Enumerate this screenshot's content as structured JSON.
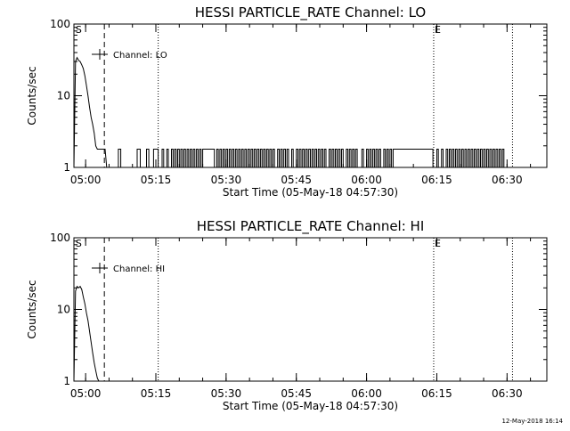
{
  "footer_timestamp": "12-May-2018 16:14",
  "chart_data": [
    {
      "type": "line",
      "title": "HESSI PARTICLE_RATE Channel: LO",
      "xlabel": "Start Time (05-May-18 04:57:30)",
      "ylabel": "Counts/sec",
      "yscale": "log",
      "ylim": [
        1,
        100
      ],
      "y_ticks": [
        "1",
        "10",
        "100"
      ],
      "xlim": [
        "04:57:30",
        "06:38:30"
      ],
      "x_ticks": [
        "05:00",
        "05:15",
        "05:30",
        "05:45",
        "06:00",
        "06:15",
        "06:30"
      ],
      "legend": {
        "label": "Channel: LO",
        "position": "top-left"
      },
      "markers": [
        {
          "label": "S",
          "x": "04:57:40",
          "style": "none"
        },
        {
          "label": "",
          "x": "05:04:00",
          "style": "dashed"
        },
        {
          "label": "",
          "x": "05:15:30",
          "style": "dotted"
        },
        {
          "label": "E",
          "x": "06:14:20",
          "style": "dotted"
        },
        {
          "label": "",
          "x": "06:31:10",
          "style": "dotted"
        }
      ],
      "series": [
        {
          "name": "Channel: LO",
          "x": [
            "04:57:30",
            "04:57:50",
            "04:58:10",
            "04:58:30",
            "04:58:50",
            "04:59:10",
            "04:59:30",
            "04:59:50",
            "05:00:10",
            "05:00:30",
            "05:00:50",
            "05:01:10",
            "05:01:30",
            "05:01:50",
            "05:02:10",
            "05:02:30",
            "05:02:50",
            "05:03:10",
            "05:03:30",
            "05:03:50",
            "05:04:10",
            "05:04:30",
            "05:05:00"
          ],
          "y": [
            1.0,
            30,
            34,
            31,
            30,
            27,
            24,
            19,
            14,
            10,
            7,
            5,
            4,
            3,
            2,
            1.8,
            1.8,
            1.8,
            1.8,
            1.8,
            1.8,
            1.0,
            1.0
          ],
          "toggle_level": 1.8,
          "toggle_segments": [
            [
              "05:07:00",
              "05:07:30"
            ],
            [
              "05:11:00",
              "05:11:40"
            ],
            [
              "05:13:00",
              "05:13:30"
            ],
            [
              "05:14:30",
              "05:15:30"
            ],
            [
              "05:16:20",
              "05:16:40"
            ],
            [
              "05:17:20",
              "05:17:40"
            ],
            [
              "05:18:20",
              "05:18:40"
            ],
            [
              "05:19:00",
              "05:19:20"
            ],
            [
              "05:19:40",
              "05:20:00"
            ],
            [
              "05:20:20",
              "05:20:40"
            ],
            [
              "05:21:00",
              "05:21:20"
            ],
            [
              "05:21:40",
              "05:22:00"
            ],
            [
              "05:22:20",
              "05:22:40"
            ],
            [
              "05:23:00",
              "05:23:20"
            ],
            [
              "05:23:40",
              "05:24:00"
            ],
            [
              "05:24:20",
              "05:24:40"
            ],
            [
              "05:25:00",
              "05:27:30"
            ],
            [
              "05:28:00",
              "05:28:20"
            ],
            [
              "05:28:40",
              "05:29:00"
            ],
            [
              "05:29:20",
              "05:29:40"
            ],
            [
              "05:30:00",
              "05:30:20"
            ],
            [
              "05:30:40",
              "05:31:00"
            ],
            [
              "05:31:20",
              "05:31:40"
            ],
            [
              "05:32:00",
              "05:32:20"
            ],
            [
              "05:32:40",
              "05:33:00"
            ],
            [
              "05:33:20",
              "05:33:40"
            ],
            [
              "05:34:00",
              "05:34:20"
            ],
            [
              "05:34:40",
              "05:35:00"
            ],
            [
              "05:35:20",
              "05:35:40"
            ],
            [
              "05:36:00",
              "05:36:20"
            ],
            [
              "05:36:40",
              "05:37:00"
            ],
            [
              "05:37:20",
              "05:37:40"
            ],
            [
              "05:38:00",
              "05:38:20"
            ],
            [
              "05:38:40",
              "05:39:00"
            ],
            [
              "05:39:20",
              "05:39:40"
            ],
            [
              "05:40:00",
              "05:40:20"
            ],
            [
              "05:41:00",
              "05:41:20"
            ],
            [
              "05:41:40",
              "05:42:00"
            ],
            [
              "05:42:20",
              "05:42:40"
            ],
            [
              "05:43:00",
              "05:43:20"
            ],
            [
              "05:44:00",
              "05:44:20"
            ],
            [
              "05:45:00",
              "05:45:20"
            ],
            [
              "05:45:40",
              "05:46:00"
            ],
            [
              "05:46:20",
              "05:46:40"
            ],
            [
              "05:47:00",
              "05:47:20"
            ],
            [
              "05:47:40",
              "05:48:00"
            ],
            [
              "05:48:20",
              "05:48:40"
            ],
            [
              "05:49:00",
              "05:49:20"
            ],
            [
              "05:49:40",
              "05:50:00"
            ],
            [
              "05:50:20",
              "05:50:40"
            ],
            [
              "05:51:00",
              "05:51:20"
            ],
            [
              "05:52:00",
              "05:52:20"
            ],
            [
              "05:52:40",
              "05:53:00"
            ],
            [
              "05:53:20",
              "05:53:40"
            ],
            [
              "05:54:00",
              "05:54:20"
            ],
            [
              "05:54:40",
              "05:55:00"
            ],
            [
              "05:55:40",
              "05:56:00"
            ],
            [
              "05:56:20",
              "05:56:40"
            ],
            [
              "05:57:00",
              "05:57:20"
            ],
            [
              "05:57:40",
              "05:58:00"
            ],
            [
              "05:59:00",
              "05:59:20"
            ],
            [
              "06:00:00",
              "06:00:20"
            ],
            [
              "06:00:40",
              "06:01:00"
            ],
            [
              "06:01:20",
              "06:01:40"
            ],
            [
              "06:02:00",
              "06:02:20"
            ],
            [
              "06:02:40",
              "06:03:00"
            ],
            [
              "06:03:40",
              "06:04:00"
            ],
            [
              "06:04:20",
              "06:04:40"
            ],
            [
              "06:05:00",
              "06:05:20"
            ],
            [
              "06:05:40",
              "06:14:10"
            ],
            [
              "06:15:00",
              "06:15:20"
            ],
            [
              "06:16:00",
              "06:16:20"
            ],
            [
              "06:17:00",
              "06:17:20"
            ],
            [
              "06:17:40",
              "06:18:00"
            ],
            [
              "06:18:20",
              "06:18:40"
            ],
            [
              "06:19:00",
              "06:19:20"
            ],
            [
              "06:19:40",
              "06:20:00"
            ],
            [
              "06:20:20",
              "06:20:40"
            ],
            [
              "06:21:00",
              "06:21:20"
            ],
            [
              "06:21:40",
              "06:22:00"
            ],
            [
              "06:22:20",
              "06:22:40"
            ],
            [
              "06:23:00",
              "06:23:20"
            ],
            [
              "06:23:40",
              "06:24:00"
            ],
            [
              "06:24:20",
              "06:24:40"
            ],
            [
              "06:25:00",
              "06:25:20"
            ],
            [
              "06:25:40",
              "06:26:00"
            ],
            [
              "06:26:20",
              "06:26:40"
            ],
            [
              "06:27:00",
              "06:27:20"
            ],
            [
              "06:27:40",
              "06:28:00"
            ],
            [
              "06:28:20",
              "06:28:40"
            ],
            [
              "06:29:00",
              "06:29:20"
            ]
          ]
        }
      ]
    },
    {
      "type": "line",
      "title": "HESSI PARTICLE_RATE Channel: HI",
      "xlabel": "Start Time (05-May-18 04:57:30)",
      "ylabel": "Counts/sec",
      "yscale": "log",
      "ylim": [
        1,
        100
      ],
      "y_ticks": [
        "1",
        "10",
        "100"
      ],
      "xlim": [
        "04:57:30",
        "06:38:30"
      ],
      "x_ticks": [
        "05:00",
        "05:15",
        "05:30",
        "05:45",
        "06:00",
        "06:15",
        "06:30"
      ],
      "legend": {
        "label": "Channel: HI",
        "position": "top-left"
      },
      "markers": [
        {
          "label": "S",
          "x": "04:57:40",
          "style": "none"
        },
        {
          "label": "",
          "x": "05:04:00",
          "style": "dashed"
        },
        {
          "label": "",
          "x": "05:15:30",
          "style": "dotted"
        },
        {
          "label": "E",
          "x": "06:14:20",
          "style": "dotted"
        },
        {
          "label": "",
          "x": "06:31:10",
          "style": "dotted"
        }
      ],
      "series": [
        {
          "name": "Channel: HI",
          "x": [
            "04:57:30",
            "04:57:50",
            "04:58:10",
            "04:58:30",
            "04:58:50",
            "04:59:10",
            "04:59:30",
            "04:59:50",
            "05:00:10",
            "05:00:30",
            "05:00:50",
            "05:01:10",
            "05:01:30",
            "05:01:50",
            "05:02:10",
            "05:02:30",
            "05:02:50"
          ],
          "y": [
            1.0,
            18,
            21,
            20,
            21,
            19,
            15,
            12,
            9,
            7,
            5,
            3.5,
            2.5,
            1.8,
            1.4,
            1.1,
            1.0
          ],
          "toggle_level": 1.8,
          "toggle_segments": []
        }
      ]
    }
  ]
}
